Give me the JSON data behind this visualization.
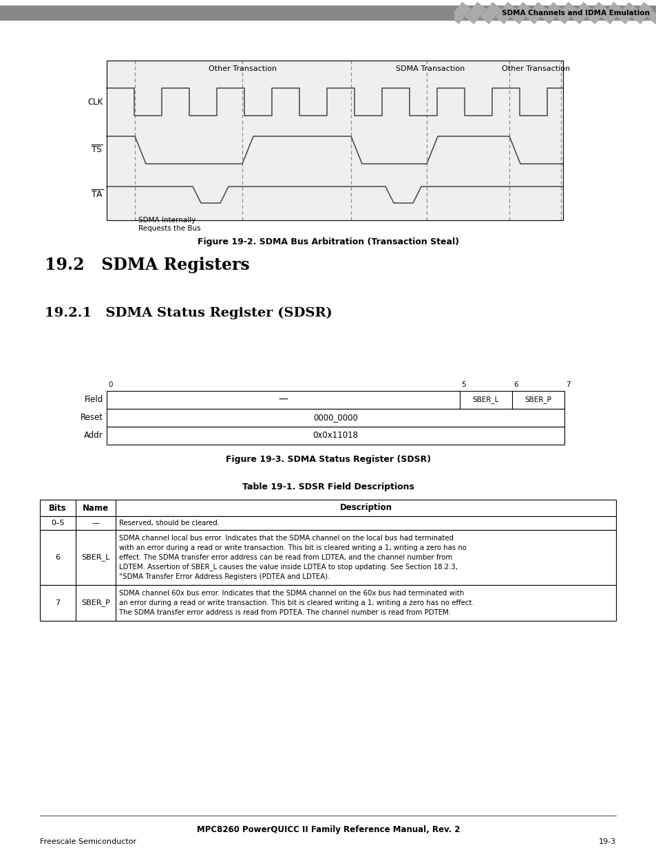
{
  "page_bg": "#ffffff",
  "header_bar_color": "#7a7a7a",
  "header_text": "SDMA Channels and IDMA Emulation",
  "section_title_192": "19.2   SDMA Registers",
  "section_title_1921": "19.2.1   SDMA Status Register (SDSR)",
  "fig2_caption": "Figure 19-2. SDMA Bus Arbitration (Transaction Steal)",
  "fig3_caption": "Figure 19-3. SDMA Status Register (SDSR)",
  "table_title": "Table 19-1. SDSR Field Descriptions",
  "footer_center": "MPC8260 PowerQUICC II Family Reference Manual, Rev. 2",
  "footer_left": "Freescale Semiconductor",
  "footer_right": "19-3",
  "waveform_bg": "#efefef",
  "line_color": "#444444",
  "dash_color": "#888888",
  "region_labels": [
    "Other Transaction",
    "SDMA Transaction",
    "Other Transaction"
  ],
  "signal_labels": [
    "CLK",
    "TS",
    "TA"
  ],
  "annotation": "SDMA Internally\nRequests the Bus",
  "reg_field_row": [
    "—",
    "SBER_L",
    "SBER_P"
  ],
  "reg_reset": "0000_0000",
  "reg_addr": "0x0x11018",
  "reg_bit_nums": [
    "0",
    "5",
    "6",
    "7"
  ],
  "tbl_headers": [
    "Bits",
    "Name",
    "Description"
  ],
  "tbl_rows": [
    [
      "0–5",
      "—",
      "Reserved, should be cleared."
    ],
    [
      "6",
      "SBER_L",
      "SDMA channel local bus error. Indicates that the SDMA channel on the local bus had terminated with an error during a read or write transaction. This bit is cleared writing a 1; writing a zero has no effect. The SDMA transfer error address can be read from LDTEA, and the channel number from LDTEM. Assertion of SBER_L causes the value inside LDTEA to stop updating. See Section 18.2.3, “SDMA Transfer Error Address Registers (PDTEA and LDTEA)."
    ],
    [
      "7",
      "SBER_P",
      "SDMA channel 60x bus error. Indicates that the SDMA channel on the 60x bus had terminated with an error during a read or write transaction. This bit is cleared writing a 1; writing a zero has no effect. The SDMA transfer error address is read from PDTEA. The channel number is read from PDTEM."
    ]
  ]
}
